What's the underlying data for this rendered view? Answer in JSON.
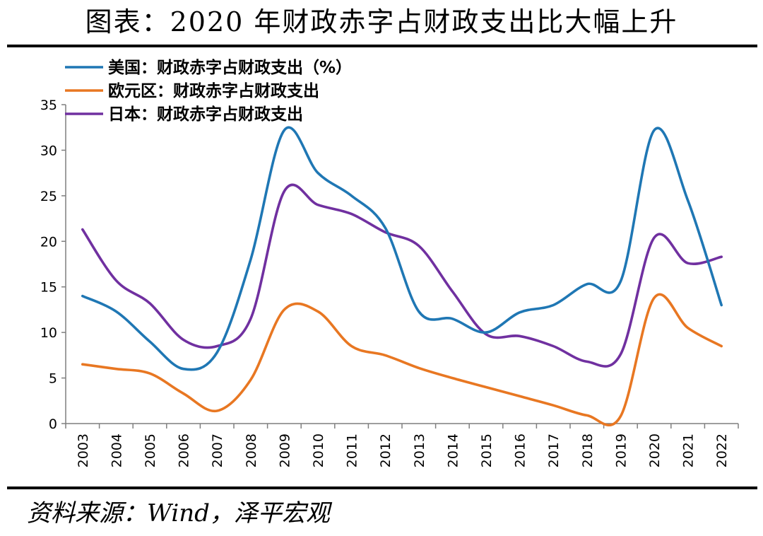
{
  "title": "图表：2020 年财政赤字占财政支出比大幅上升",
  "source": "资料来源：Wind，泽平宏观",
  "chart_data": {
    "type": "line",
    "title": "图表：2020 年财政赤字占财政支出比大幅上升",
    "categories": [
      "2003",
      "2004",
      "2005",
      "2006",
      "2007",
      "2008",
      "2009",
      "2010",
      "2011",
      "2012",
      "2013",
      "2014",
      "2015",
      "2016",
      "2017",
      "2018",
      "2019",
      "2020",
      "2021",
      "2022"
    ],
    "ylim": [
      0,
      35
    ],
    "yticks": [
      0,
      5,
      10,
      15,
      20,
      25,
      30,
      35
    ],
    "legend_position": "top-left",
    "grid": false,
    "series": [
      {
        "name": "美国：财政赤字占财政支出（%）",
        "color": "#1f77b4",
        "values": [
          14.0,
          12.3,
          9.0,
          6.0,
          7.8,
          18.0,
          32.2,
          27.5,
          25.0,
          21.5,
          12.3,
          11.5,
          10.0,
          12.2,
          13.0,
          15.3,
          15.6,
          32.2,
          24.5,
          13.0
        ]
      },
      {
        "name": "欧元区：财政赤字占财政支出",
        "color": "#e87722",
        "values": [
          6.5,
          6.0,
          5.5,
          3.3,
          1.4,
          4.8,
          12.5,
          12.3,
          8.5,
          7.5,
          6.1,
          5.0,
          4.0,
          3.0,
          2.0,
          0.9,
          0.8,
          13.8,
          10.5,
          8.5
        ]
      },
      {
        "name": "日本：财政赤字占财政支出",
        "color": "#7030a0",
        "values": [
          21.3,
          15.7,
          13.2,
          9.2,
          8.5,
          11.5,
          25.5,
          24.0,
          23.0,
          21.0,
          19.5,
          14.5,
          9.8,
          9.6,
          8.5,
          6.8,
          7.6,
          20.4,
          17.6,
          18.3
        ]
      }
    ]
  }
}
